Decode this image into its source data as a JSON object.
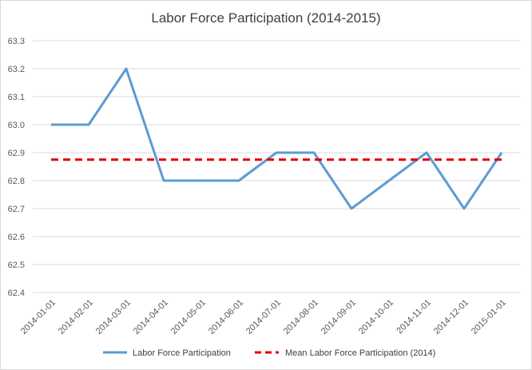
{
  "chart_data": {
    "type": "line",
    "title": "Labor Force Participation (2014-2015)",
    "xlabel": "",
    "ylabel": "",
    "ylim": [
      62.4,
      63.3
    ],
    "y_ticks": [
      "62.4",
      "62.5",
      "62.6",
      "62.7",
      "62.8",
      "62.9",
      "63.0",
      "63.1",
      "63.2",
      "63.3"
    ],
    "grid": true,
    "legend_position": "bottom",
    "categories": [
      "2014-01-01",
      "2014-02-01",
      "2014-03-01",
      "2014-04-01",
      "2014-05-01",
      "2014-06-01",
      "2014-07-01",
      "2014-08-01",
      "2014-09-01",
      "2014-10-01",
      "2014-11-01",
      "2014-12-01",
      "2015-01-01"
    ],
    "series": [
      {
        "name": "Labor Force Participation",
        "values": [
          63.0,
          63.0,
          63.2,
          62.8,
          62.8,
          62.8,
          62.9,
          62.9,
          62.7,
          62.8,
          62.9,
          62.7,
          62.9
        ],
        "color": "#5b9bd5",
        "style": "solid"
      },
      {
        "name": "Mean Labor Force Participation (2014)",
        "values": [
          62.875,
          62.875,
          62.875,
          62.875,
          62.875,
          62.875,
          62.875,
          62.875,
          62.875,
          62.875,
          62.875,
          62.875,
          62.875
        ],
        "color": "#e00000",
        "style": "dashed"
      }
    ]
  }
}
